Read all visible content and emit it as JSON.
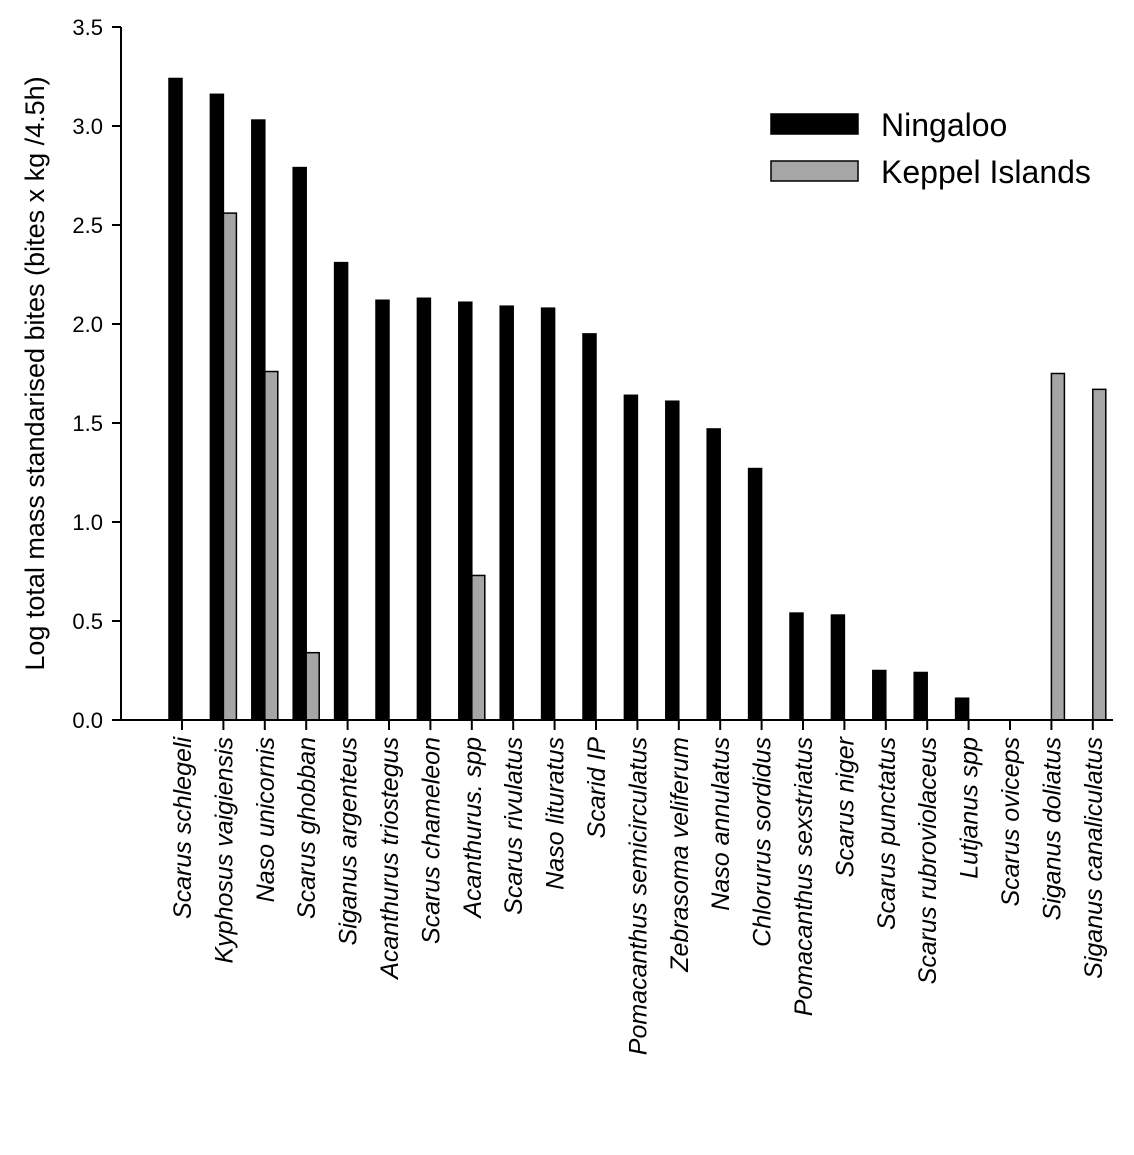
{
  "chart_data": {
    "type": "bar",
    "ylabel": "Log total mass standarised bites (bites x kg /4.5h)",
    "ylim": [
      0,
      3.5
    ],
    "yticks": [
      "0.0",
      "0.5",
      "1.0",
      "1.5",
      "2.0",
      "2.5",
      "3.0",
      "3.5"
    ],
    "legend_position": "top-right",
    "categories": [
      "Scarus schlegeli",
      "Kyphosus vaigiensis",
      "Naso unicornis",
      "Scarus ghobban",
      "Siganus argenteus",
      "Acanthurus triostegus",
      "Scarus chameleon",
      "Acanthurus. spp",
      "Scarus rivulatus",
      "Naso lituratus",
      "Scarid IP",
      "Pomacanthus semicirculatus",
      "Zebrasoma veliferum",
      "Naso annulatus",
      "Chlorurus sordidus",
      "Pomacanthus sexstriatus",
      "Scarus niger",
      "Scarus punctatus",
      "Scarus rubroviolaceus",
      "Lutjanus spp",
      "Scarus oviceps",
      "Siganus doliatus",
      "Siganus canaliculatus"
    ],
    "series": [
      {
        "name": "Ningaloo",
        "color": "#000000",
        "values": [
          3.24,
          3.16,
          3.03,
          2.79,
          2.31,
          2.12,
          2.13,
          2.11,
          2.09,
          2.08,
          1.95,
          1.64,
          1.61,
          1.47,
          1.27,
          0.54,
          0.53,
          0.25,
          0.24,
          0.11,
          0,
          0,
          0
        ]
      },
      {
        "name": "Keppel Islands",
        "color": "#a6a6a6",
        "values": [
          0,
          2.56,
          1.76,
          0.34,
          0,
          0,
          0,
          0.73,
          0,
          0,
          0,
          0,
          0,
          0,
          0,
          0,
          0,
          0,
          0,
          0,
          0,
          1.75,
          1.67
        ]
      }
    ]
  }
}
